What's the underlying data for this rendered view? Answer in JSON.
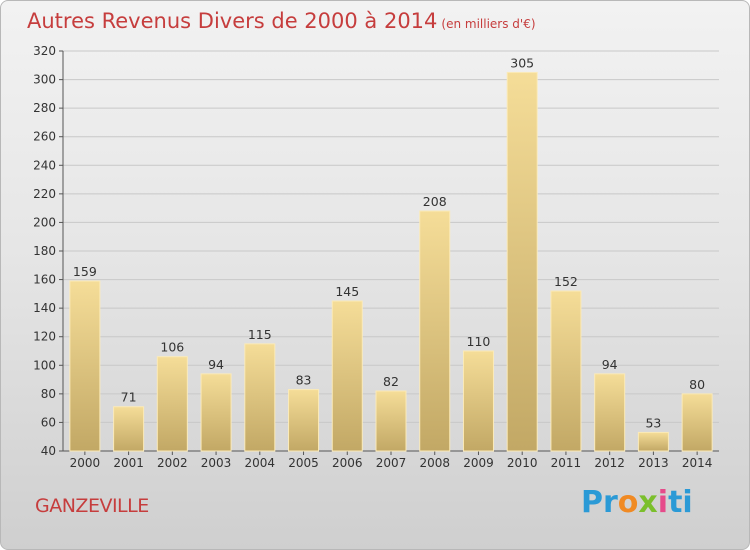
{
  "chart_data": {
    "type": "bar",
    "title": "Autres Revenus Divers de 2000 à 2014",
    "subtitle": "(en milliers d'€)",
    "categories": [
      "2000",
      "2001",
      "2002",
      "2003",
      "2004",
      "2005",
      "2006",
      "2007",
      "2008",
      "2009",
      "2010",
      "2011",
      "2012",
      "2013",
      "2014"
    ],
    "values": [
      159,
      71,
      106,
      94,
      115,
      83,
      145,
      82,
      208,
      110,
      305,
      152,
      94,
      53,
      80
    ],
    "ylim": [
      40,
      320
    ],
    "yticks": [
      40,
      60,
      80,
      100,
      120,
      140,
      160,
      180,
      200,
      220,
      240,
      260,
      280,
      300,
      320
    ],
    "grid": true,
    "xlabel": "",
    "ylabel": "",
    "bar_color_top": "#f5dd98",
    "bar_color_bottom": "#c2a865"
  },
  "footer": {
    "town": "GANZEVILLE",
    "logo_parts": [
      "Pr",
      "o",
      "x",
      "i",
      "ti"
    ]
  }
}
